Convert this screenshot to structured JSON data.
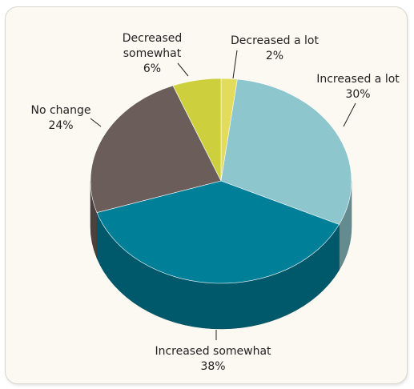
{
  "chart_data": {
    "type": "pie",
    "slices": [
      {
        "label": "Decreased a lot",
        "value": 2,
        "display": "2%",
        "color": "#e2dc5a"
      },
      {
        "label": "Increased a lot",
        "value": 30,
        "display": "30%",
        "color": "#8dc6cd"
      },
      {
        "label": "Increased somewhat",
        "value": 38,
        "display": "38%",
        "color": "#007f98"
      },
      {
        "label": "No change",
        "value": 24,
        "display": "24%",
        "color": "#6b5d59"
      },
      {
        "label": "Decreased somewhat",
        "value": 6,
        "display": "6%",
        "color": "#cdd03c"
      }
    ],
    "label_lines": {
      "Decreased a lot": [
        "Decreased a lot",
        "2%"
      ],
      "Increased a lot": [
        "Increased a lot",
        "30%"
      ],
      "Increased somewhat": [
        "Increased somewhat",
        "38%"
      ],
      "No change": [
        "No change",
        "24%"
      ],
      "Decreased somewhat": [
        "Decreased",
        "somewhat",
        "6%"
      ]
    },
    "style": "3d"
  }
}
